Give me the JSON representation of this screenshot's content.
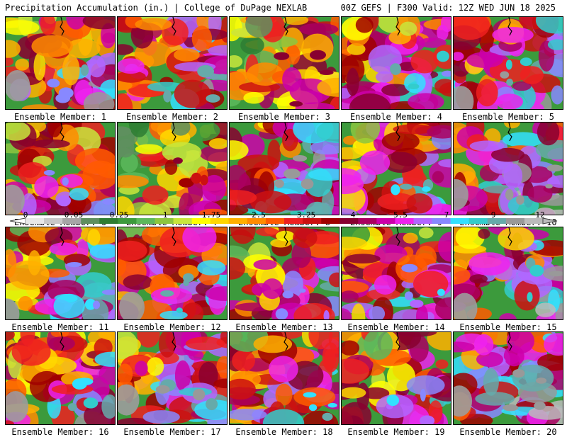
{
  "header": {
    "title": "Precipitation Accumulation (in.) | College of DuPage NEXLAB",
    "valid": "00Z GEFS | F300 Valid: 12Z WED JUN 18 2025"
  },
  "members": [
    {
      "label": "Ensemble Member: 1",
      "level": 0.55
    },
    {
      "label": "Ensemble Member: 2",
      "level": 0.6
    },
    {
      "label": "Ensemble Member: 3",
      "level": 0.35
    },
    {
      "label": "Ensemble Member: 4",
      "level": 0.55
    },
    {
      "label": "Ensemble Member: 5",
      "level": 0.62
    },
    {
      "label": "Ensemble Member: 6",
      "level": 0.5
    },
    {
      "label": "Ensemble Member: 7",
      "level": 0.3
    },
    {
      "label": "Ensemble Member: 8",
      "level": 0.7
    },
    {
      "label": "Ensemble Member: 9",
      "level": 0.58
    },
    {
      "label": "Ensemble Member: 10",
      "level": 0.7
    },
    {
      "label": "Ensemble Member: 11",
      "level": 0.55
    },
    {
      "label": "Ensemble Member: 12",
      "level": 0.58
    },
    {
      "label": "Ensemble Member: 13",
      "level": 0.5
    },
    {
      "label": "Ensemble Member: 14",
      "level": 0.5
    },
    {
      "label": "Ensemble Member: 15",
      "level": 0.6
    },
    {
      "label": "Ensemble Member: 16",
      "level": 0.55
    },
    {
      "label": "Ensemble Member: 17",
      "level": 0.6
    },
    {
      "label": "Ensemble Member: 18",
      "level": 0.55
    },
    {
      "label": "Ensemble Member: 19",
      "level": 0.5
    },
    {
      "label": "Ensemble Member: 20",
      "level": 0.72
    }
  ],
  "colorbar": {
    "labels": [
      "0",
      "0.05",
      "0.25",
      "1",
      "1.75",
      "2.5",
      "3.25",
      "4",
      "5.5",
      "7",
      "9",
      "12"
    ],
    "colors": [
      "#e8e8e8",
      "#c8c8c8",
      "#a6a6a6",
      "#5f8f5f",
      "#2e7d32",
      "#3c9a3c",
      "#5cb85c",
      "#8cc63f",
      "#c8e63c",
      "#ffff00",
      "#ffd700",
      "#ffb000",
      "#ff8c00",
      "#ff5a00",
      "#ee2020",
      "#cc1010",
      "#a00000",
      "#880030",
      "#aa0060",
      "#cc00aa",
      "#ee22ee",
      "#b266ff",
      "#8888ff",
      "#33e0ff",
      "#33cccc",
      "#66aaaa",
      "#999999",
      "#bbbbbb"
    ]
  }
}
